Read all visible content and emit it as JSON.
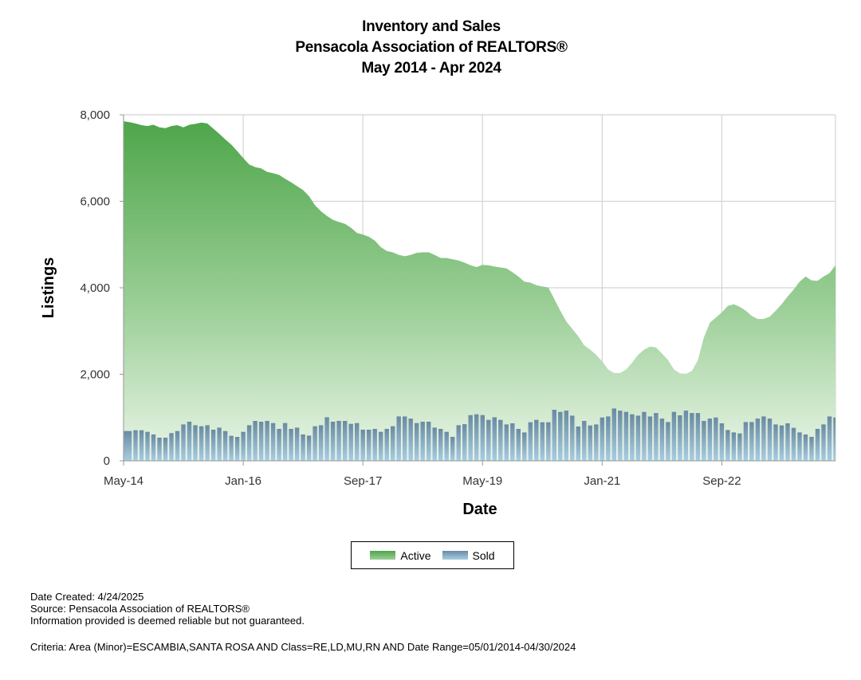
{
  "chart_data": {
    "type": "area+bar",
    "title": [
      "Inventory and Sales",
      "Pensacola Association of REALTORS®",
      "May 2014 - Apr 2024"
    ],
    "xlabel": "Date",
    "ylabel": "Listings",
    "ylim": [
      0,
      8000
    ],
    "yticks": [
      "0",
      "2,000",
      "4,000",
      "6,000",
      "8,000"
    ],
    "ytick_values": [
      0,
      2000,
      4000,
      6000,
      8000
    ],
    "xticks": [
      "May-14",
      "Jan-16",
      "Sep-17",
      "May-19",
      "Jan-21",
      "Sep-22"
    ],
    "xtick_month_index": [
      0,
      20,
      40,
      60,
      80,
      100
    ],
    "x_start": "May 2014",
    "x_end": "Apr 2024",
    "grid": true,
    "legend_position": "bottom",
    "series": [
      {
        "name": "Active",
        "type": "area",
        "color": "#4ea64a",
        "values": [
          7850,
          7830,
          7800,
          7760,
          7740,
          7770,
          7710,
          7690,
          7740,
          7760,
          7710,
          7770,
          7790,
          7820,
          7800,
          7680,
          7560,
          7430,
          7310,
          7160,
          7000,
          6850,
          6790,
          6760,
          6680,
          6650,
          6610,
          6520,
          6440,
          6350,
          6260,
          6120,
          5910,
          5770,
          5660,
          5570,
          5520,
          5480,
          5390,
          5270,
          5230,
          5180,
          5090,
          4940,
          4850,
          4820,
          4760,
          4730,
          4760,
          4810,
          4820,
          4820,
          4760,
          4690,
          4690,
          4660,
          4630,
          4580,
          4520,
          4480,
          4530,
          4520,
          4490,
          4470,
          4450,
          4360,
          4260,
          4140,
          4120,
          4060,
          4030,
          4010,
          3740,
          3470,
          3220,
          3050,
          2880,
          2670,
          2570,
          2450,
          2300,
          2110,
          2030,
          2030,
          2110,
          2270,
          2450,
          2570,
          2640,
          2620,
          2480,
          2330,
          2110,
          2020,
          2010,
          2080,
          2330,
          2850,
          3190,
          3310,
          3430,
          3580,
          3620,
          3560,
          3470,
          3350,
          3280,
          3280,
          3330,
          3470,
          3620,
          3800,
          3960,
          4140,
          4260,
          4170,
          4160,
          4260,
          4340,
          4520
        ]
      },
      {
        "name": "Sold",
        "type": "bar",
        "color": "#6f92ad",
        "values": [
          688,
          688,
          706,
          706,
          669,
          608,
          534,
          534,
          639,
          688,
          841,
          903,
          823,
          798,
          823,
          718,
          767,
          688,
          577,
          553,
          669,
          823,
          921,
          903,
          921,
          872,
          737,
          872,
          737,
          767,
          608,
          583,
          798,
          823,
          1007,
          903,
          921,
          921,
          853,
          872,
          718,
          718,
          737,
          669,
          737,
          798,
          1025,
          1025,
          976,
          872,
          903,
          903,
          767,
          737,
          669,
          553,
          823,
          847,
          1056,
          1074,
          1056,
          946,
          1007,
          946,
          841,
          866,
          737,
          657,
          890,
          946,
          890,
          890,
          1179,
          1130,
          1160,
          1044,
          792,
          921,
          817,
          841,
          1001,
          1025,
          1209,
          1160,
          1130,
          1074,
          1044,
          1130,
          1025,
          1105,
          976,
          896,
          1130,
          1050,
          1160,
          1105,
          1105,
          921,
          976,
          1001,
          866,
          712,
          657,
          632,
          896,
          896,
          976,
          1025,
          976,
          841,
          817,
          866,
          761,
          657,
          608,
          553,
          737,
          841,
          1025,
          1001
        ]
      }
    ]
  },
  "legend": {
    "active": "Active",
    "sold": "Sold"
  },
  "footer": {
    "date_created": "Date Created: 4/24/2025",
    "source": "Source: Pensacola Association of REALTORS®",
    "disclaimer": "Information provided is deemed reliable but not guaranteed.",
    "criteria": "Criteria: Area (Minor)=ESCAMBIA,SANTA ROSA AND Class=RE,LD,MU,RN AND Date Range=05/01/2014-04/30/2024"
  }
}
